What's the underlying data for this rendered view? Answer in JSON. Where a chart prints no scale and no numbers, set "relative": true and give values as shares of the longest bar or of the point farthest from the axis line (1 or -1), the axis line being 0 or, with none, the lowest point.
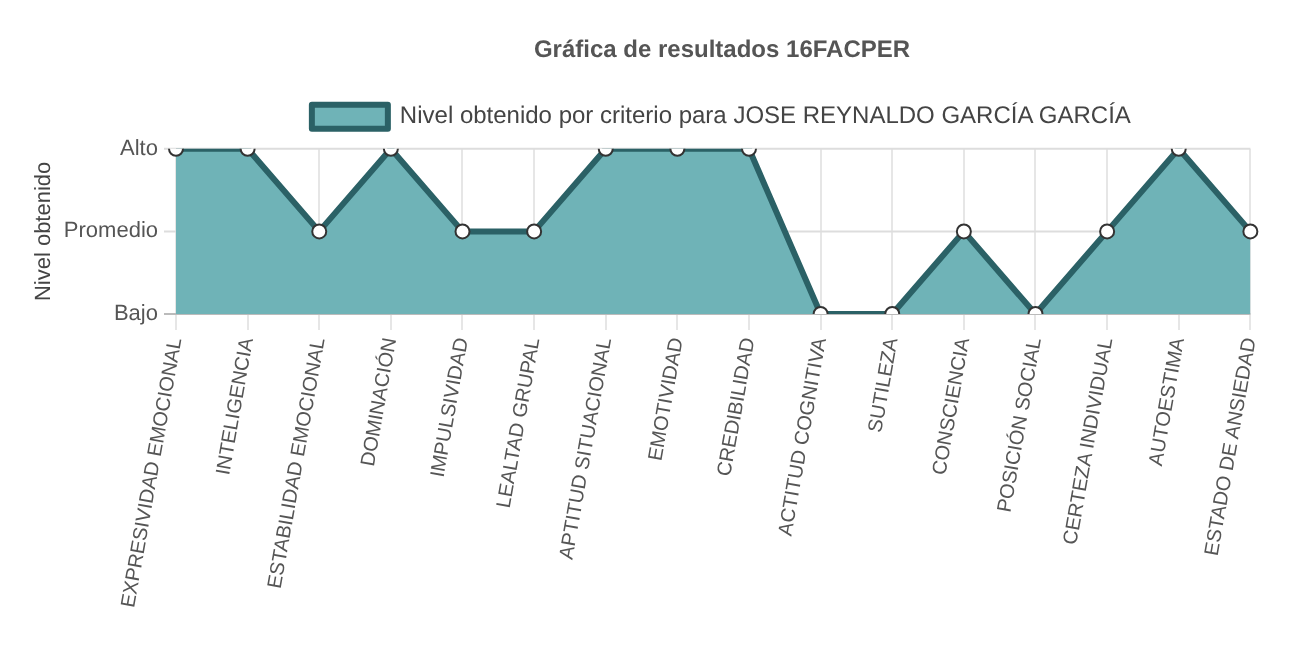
{
  "chart_data": {
    "type": "area",
    "title": "Gráfica de resultados 16FACPER",
    "ylabel": "Nivel obtenido",
    "relative": true,
    "categories": [
      "EXPRESIVIDAD EMOCIONAL",
      "INTELIGENCIA",
      "ESTABILIDAD EMOCIONAL",
      "DOMINACIÓN",
      "IMPULSIVIDAD",
      "LEALTAD GRUPAL",
      "APTITUD SITUACIONAL",
      "EMOTIVIDAD",
      "CREDIBILIDAD",
      "ACTITUD COGNITIVA",
      "SUTILEZA",
      "CONSCIENCIA",
      "POSICIÓN SOCIAL",
      "CERTEZA INDIVIDUAL",
      "AUTOESTIMA",
      "ESTADO DE ANSIEDAD"
    ],
    "series": [
      {
        "name": "Nivel obtenido por criterio para JOSE REYNALDO GARCÍA GARCÍA",
        "color": "#2b6166",
        "values": [
          1,
          1,
          0.5,
          1,
          0.5,
          0.5,
          1,
          1,
          1,
          0,
          0,
          0.5,
          0,
          0.5,
          1,
          0.5
        ]
      }
    ],
    "ref_lines": [
      {
        "axis": "y",
        "value": 0,
        "label": "Bajo",
        "color": "#bbbbbb"
      },
      {
        "axis": "y",
        "value": 0.5,
        "label": "Promedio",
        "color": "#dddddd"
      },
      {
        "axis": "y",
        "value": 1,
        "label": "Alto",
        "color": "#dddddd"
      }
    ],
    "grid": "x",
    "legend": "top",
    "marker": "circle",
    "line_style": "solid"
  }
}
